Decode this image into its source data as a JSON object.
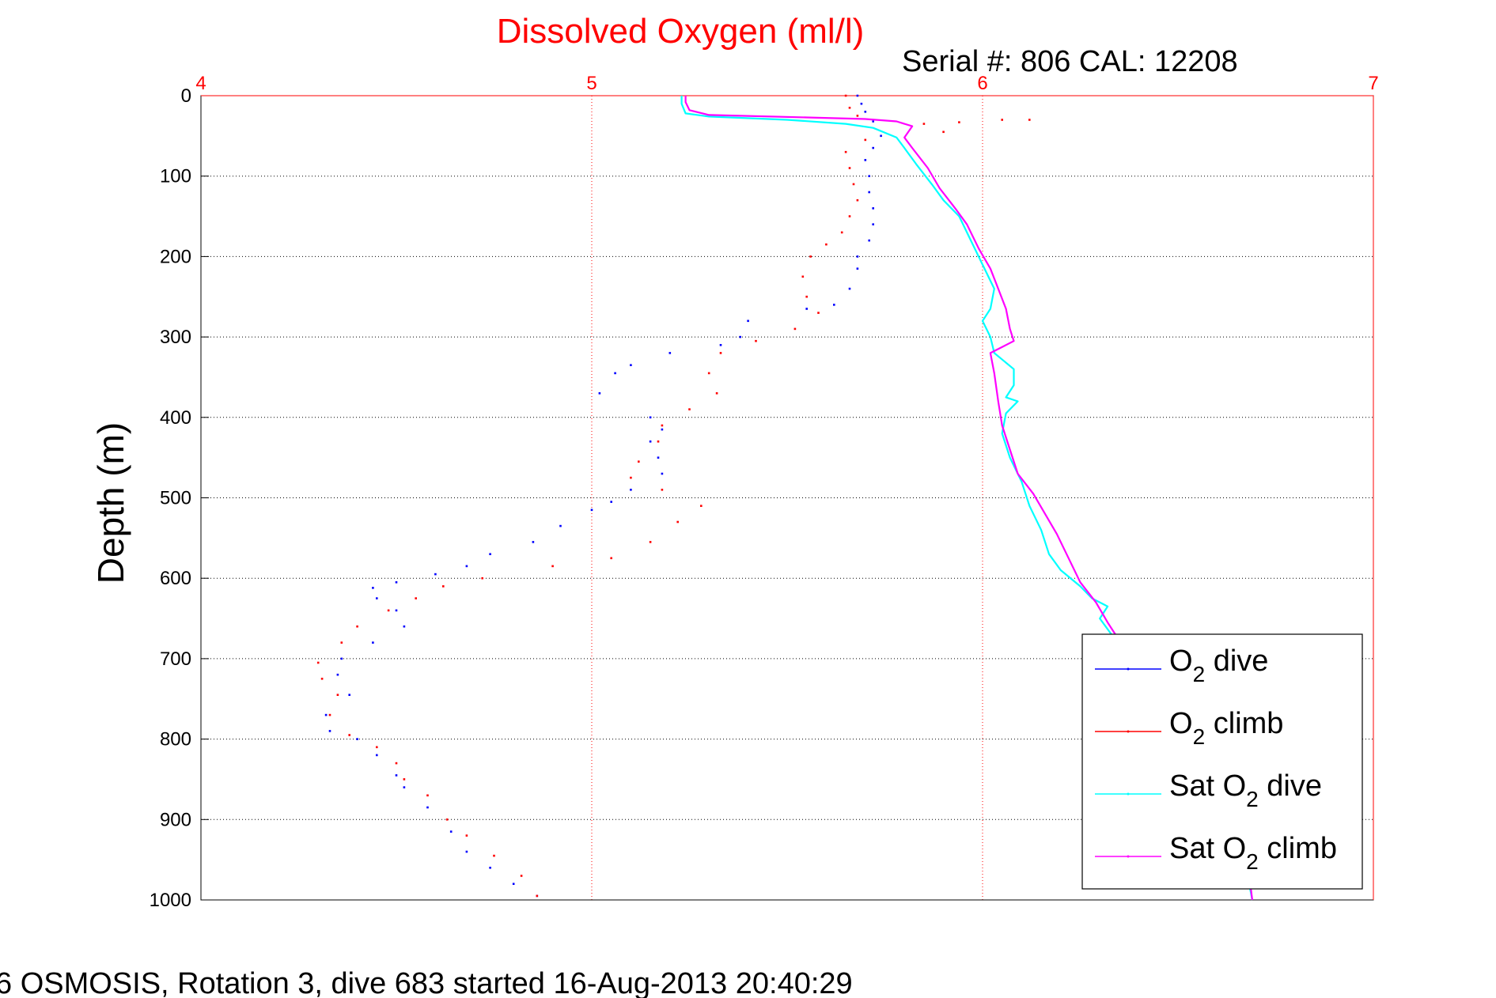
{
  "footer_caption": "6 OSMOSIS, Rotation 3, dive 683 started 16-Aug-2013 20:40:29",
  "chart_data": {
    "type": "scatter",
    "title": "Dissolved Oxygen (ml/l)",
    "subtitle": "Serial #: 806  CAL: 12208",
    "xlabel": "",
    "ylabel": "Depth (m)",
    "xlim": [
      4,
      7
    ],
    "ylim": [
      0,
      1000
    ],
    "y_reversed": true,
    "x_axis_location": "top",
    "x_ticks": [
      "4",
      "5",
      "6",
      "7"
    ],
    "y_ticks": [
      "0",
      "100",
      "200",
      "300",
      "400",
      "500",
      "600",
      "700",
      "800",
      "900",
      "1000"
    ],
    "grid": true,
    "legend_location": "bottom-right",
    "colors": {
      "title": "#ff0000",
      "x_axis": "#ff0000",
      "o2_dive": "#0000ff",
      "o2_climb": "#ff0000",
      "sat_dive": "#00ffff",
      "sat_climb": "#ff00ff"
    },
    "series": [
      {
        "name": "O2 dive",
        "legend_main": "O",
        "legend_sub": "2",
        "legend_rest": " dive",
        "style": "dots",
        "points": [
          [
            5.68,
            0
          ],
          [
            5.69,
            10
          ],
          [
            5.7,
            20
          ],
          [
            5.72,
            32
          ],
          [
            5.74,
            50
          ],
          [
            5.72,
            65
          ],
          [
            5.7,
            80
          ],
          [
            5.71,
            100
          ],
          [
            5.71,
            120
          ],
          [
            5.72,
            140
          ],
          [
            5.72,
            160
          ],
          [
            5.71,
            180
          ],
          [
            5.68,
            200
          ],
          [
            5.68,
            215
          ],
          [
            5.66,
            240
          ],
          [
            5.62,
            260
          ],
          [
            5.55,
            265
          ],
          [
            5.4,
            280
          ],
          [
            5.38,
            300
          ],
          [
            5.33,
            310
          ],
          [
            5.2,
            320
          ],
          [
            5.1,
            335
          ],
          [
            5.06,
            345
          ],
          [
            5.02,
            370
          ],
          [
            5.15,
            400
          ],
          [
            5.18,
            415
          ],
          [
            5.15,
            430
          ],
          [
            5.17,
            450
          ],
          [
            5.18,
            470
          ],
          [
            5.1,
            490
          ],
          [
            5.05,
            505
          ],
          [
            5.0,
            515
          ],
          [
            4.92,
            535
          ],
          [
            4.85,
            555
          ],
          [
            4.74,
            570
          ],
          [
            4.68,
            585
          ],
          [
            4.6,
            595
          ],
          [
            4.5,
            605
          ],
          [
            4.44,
            612
          ],
          [
            4.45,
            625
          ],
          [
            4.5,
            640
          ],
          [
            4.52,
            660
          ],
          [
            4.44,
            680
          ],
          [
            4.36,
            700
          ],
          [
            4.35,
            720
          ],
          [
            4.38,
            745
          ],
          [
            4.32,
            770
          ],
          [
            4.33,
            790
          ],
          [
            4.4,
            800
          ],
          [
            4.45,
            820
          ],
          [
            4.5,
            845
          ],
          [
            4.52,
            860
          ],
          [
            4.58,
            885
          ],
          [
            4.64,
            915
          ],
          [
            4.68,
            940
          ],
          [
            4.74,
            960
          ],
          [
            4.8,
            980
          ],
          [
            4.86,
            995
          ]
        ]
      },
      {
        "name": "O2 climb",
        "legend_main": "O",
        "legend_sub": "2",
        "legend_rest": " climb",
        "style": "dots",
        "points": [
          [
            5.65,
            0
          ],
          [
            5.66,
            15
          ],
          [
            5.68,
            25
          ],
          [
            5.85,
            35
          ],
          [
            5.94,
            33
          ],
          [
            6.05,
            30
          ],
          [
            6.12,
            30
          ],
          [
            5.9,
            45
          ],
          [
            5.7,
            55
          ],
          [
            5.65,
            70
          ],
          [
            5.66,
            90
          ],
          [
            5.67,
            110
          ],
          [
            5.68,
            130
          ],
          [
            5.66,
            150
          ],
          [
            5.64,
            170
          ],
          [
            5.6,
            185
          ],
          [
            5.56,
            200
          ],
          [
            5.54,
            225
          ],
          [
            5.55,
            250
          ],
          [
            5.58,
            270
          ],
          [
            5.52,
            290
          ],
          [
            5.42,
            305
          ],
          [
            5.33,
            320
          ],
          [
            5.3,
            345
          ],
          [
            5.32,
            370
          ],
          [
            5.25,
            390
          ],
          [
            5.18,
            410
          ],
          [
            5.17,
            430
          ],
          [
            5.12,
            455
          ],
          [
            5.1,
            475
          ],
          [
            5.18,
            490
          ],
          [
            5.28,
            510
          ],
          [
            5.22,
            530
          ],
          [
            5.15,
            555
          ],
          [
            5.05,
            575
          ],
          [
            4.9,
            585
          ],
          [
            4.72,
            600
          ],
          [
            4.62,
            610
          ],
          [
            4.55,
            625
          ],
          [
            4.48,
            640
          ],
          [
            4.4,
            660
          ],
          [
            4.36,
            680
          ],
          [
            4.3,
            705
          ],
          [
            4.31,
            725
          ],
          [
            4.35,
            745
          ],
          [
            4.33,
            770
          ],
          [
            4.38,
            795
          ],
          [
            4.45,
            810
          ],
          [
            4.5,
            830
          ],
          [
            4.52,
            850
          ],
          [
            4.58,
            870
          ],
          [
            4.63,
            900
          ],
          [
            4.68,
            920
          ],
          [
            4.75,
            945
          ],
          [
            4.82,
            970
          ],
          [
            4.86,
            995
          ]
        ]
      },
      {
        "name": "Sat O2 dive",
        "legend_main": "Sat O",
        "legend_sub": "2",
        "legend_rest": " dive",
        "style": "line",
        "points": [
          [
            5.23,
            0
          ],
          [
            5.23,
            10
          ],
          [
            5.24,
            22
          ],
          [
            5.3,
            26
          ],
          [
            5.5,
            30
          ],
          [
            5.65,
            35
          ],
          [
            5.72,
            40
          ],
          [
            5.78,
            52
          ],
          [
            5.8,
            65
          ],
          [
            5.83,
            85
          ],
          [
            5.87,
            110
          ],
          [
            5.9,
            130
          ],
          [
            5.94,
            150
          ],
          [
            5.97,
            180
          ],
          [
            6.0,
            210
          ],
          [
            6.03,
            240
          ],
          [
            6.02,
            265
          ],
          [
            6.0,
            280
          ],
          [
            6.02,
            300
          ],
          [
            6.03,
            320
          ],
          [
            6.08,
            340
          ],
          [
            6.08,
            360
          ],
          [
            6.06,
            375
          ],
          [
            6.09,
            380
          ],
          [
            6.06,
            395
          ],
          [
            6.05,
            420
          ],
          [
            6.07,
            450
          ],
          [
            6.1,
            480
          ],
          [
            6.12,
            510
          ],
          [
            6.15,
            540
          ],
          [
            6.17,
            570
          ],
          [
            6.2,
            590
          ],
          [
            6.25,
            610
          ],
          [
            6.28,
            625
          ],
          [
            6.32,
            635
          ],
          [
            6.3,
            650
          ],
          [
            6.33,
            670
          ],
          [
            6.36,
            690
          ],
          [
            6.4,
            710
          ],
          [
            6.45,
            740
          ],
          [
            6.5,
            770
          ],
          [
            6.55,
            800
          ],
          [
            6.58,
            830
          ],
          [
            6.61,
            860
          ],
          [
            6.63,
            890
          ],
          [
            6.66,
            920
          ],
          [
            6.68,
            950
          ],
          [
            6.68,
            975
          ],
          [
            6.69,
            1000
          ]
        ]
      },
      {
        "name": "Sat O2 climb",
        "legend_main": "Sat O",
        "legend_sub": "2",
        "legend_rest": " climb",
        "style": "line",
        "points": [
          [
            5.24,
            0
          ],
          [
            5.24,
            8
          ],
          [
            5.25,
            18
          ],
          [
            5.3,
            24
          ],
          [
            5.55,
            27
          ],
          [
            5.7,
            29
          ],
          [
            5.78,
            32
          ],
          [
            5.82,
            38
          ],
          [
            5.8,
            52
          ],
          [
            5.82,
            65
          ],
          [
            5.86,
            90
          ],
          [
            5.89,
            115
          ],
          [
            5.93,
            140
          ],
          [
            5.96,
            160
          ],
          [
            5.99,
            190
          ],
          [
            6.02,
            215
          ],
          [
            6.04,
            240
          ],
          [
            6.06,
            265
          ],
          [
            6.07,
            290
          ],
          [
            6.08,
            305
          ],
          [
            6.02,
            320
          ],
          [
            6.03,
            345
          ],
          [
            6.04,
            380
          ],
          [
            6.05,
            410
          ],
          [
            6.07,
            440
          ],
          [
            6.09,
            470
          ],
          [
            6.13,
            495
          ],
          [
            6.16,
            520
          ],
          [
            6.19,
            545
          ],
          [
            6.22,
            575
          ],
          [
            6.25,
            605
          ],
          [
            6.29,
            630
          ],
          [
            6.32,
            655
          ],
          [
            6.36,
            685
          ],
          [
            6.42,
            720
          ],
          [
            6.48,
            760
          ],
          [
            6.54,
            800
          ],
          [
            6.58,
            840
          ],
          [
            6.62,
            880
          ],
          [
            6.66,
            920
          ],
          [
            6.68,
            960
          ],
          [
            6.69,
            1000
          ]
        ]
      }
    ]
  }
}
